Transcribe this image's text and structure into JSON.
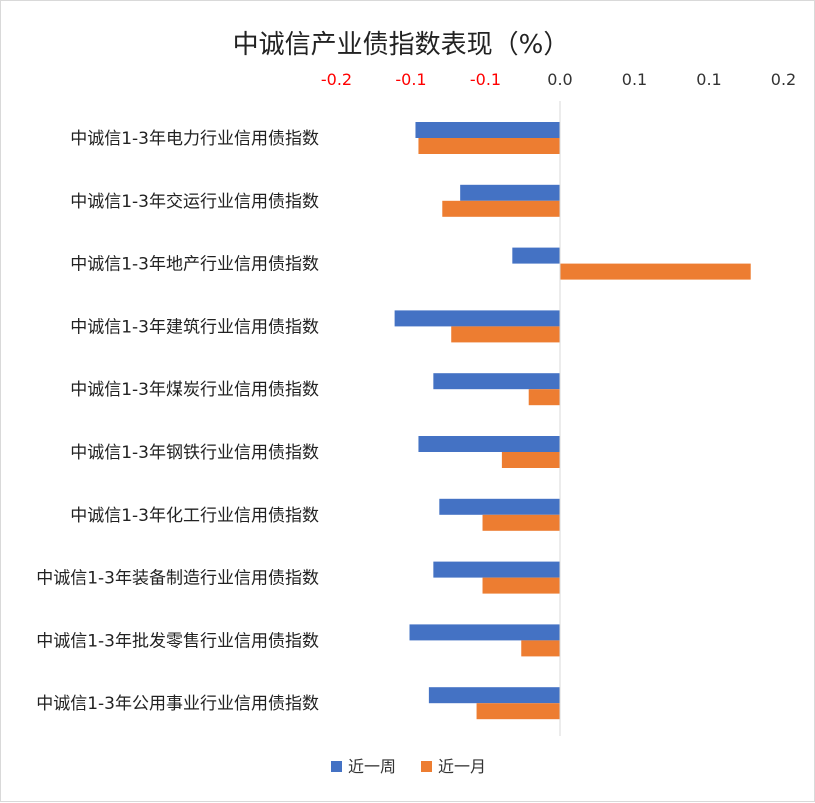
{
  "chart_data": {
    "type": "bar",
    "orientation": "horizontal",
    "title": "中诚信产业债指数表现（%）",
    "xlim": [
      -0.2,
      0.2
    ],
    "x_tick_labels": [
      "-0.2",
      "-0.1",
      "-0.1",
      "0.0",
      "0.1",
      "0.1",
      "0.2"
    ],
    "x_ticks": [
      -0.15,
      -0.1,
      -0.05,
      0.0,
      0.05,
      0.1,
      0.15
    ],
    "negative_tick_color": "#ff0000",
    "positive_tick_color": "#333333",
    "axis_position": "top",
    "categories": [
      "中诚信1-3年电力行业信用债指数",
      "中诚信1-3年交运行业信用债指数",
      "中诚信1-3年地产行业信用债指数",
      "中诚信1-3年建筑行业信用债指数",
      "中诚信1-3年煤炭行业信用债指数",
      "中诚信1-3年钢铁行业信用债指数",
      "中诚信1-3年化工行业信用债指数",
      "中诚信1-3年装备制造行业信用债指数",
      "中诚信1-3年批发零售行业信用债指数",
      "中诚信1-3年公用事业行业信用债指数"
    ],
    "series": [
      {
        "name": "近一周",
        "color": "#4472c4",
        "values": [
          -0.097,
          -0.067,
          -0.032,
          -0.111,
          -0.085,
          -0.095,
          -0.081,
          -0.085,
          -0.101,
          -0.088
        ]
      },
      {
        "name": "近一月",
        "color": "#ed7d31",
        "values": [
          -0.095,
          -0.079,
          0.128,
          -0.073,
          -0.021,
          -0.039,
          -0.052,
          -0.052,
          -0.026,
          -0.056
        ]
      }
    ],
    "legend_position": "bottom",
    "grid": false
  }
}
